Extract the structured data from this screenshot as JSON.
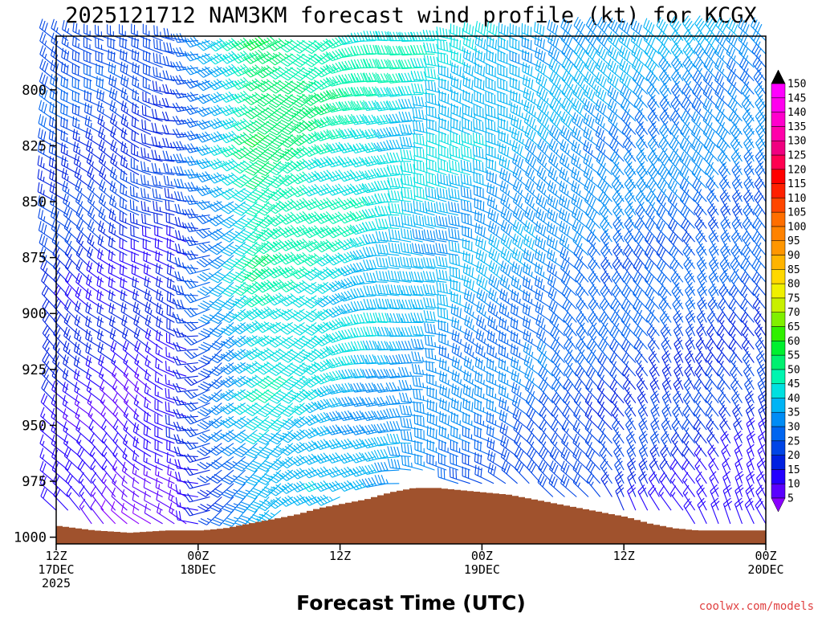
{
  "chart_data": {
    "type": "wind-profile",
    "title": "2025121712 NAM3KM forecast wind profile (kt) for KCGX",
    "xlabel": "Forecast Time (UTC)",
    "ylabel": "",
    "units": "kt",
    "y_axis": {
      "quantity": "pressure (hPa)",
      "inverted": true,
      "range": [
        1003,
        776
      ],
      "ticks": [
        800,
        825,
        850,
        875,
        900,
        925,
        950,
        975,
        1000
      ]
    },
    "x_axis": {
      "range_hours": [
        0,
        60
      ],
      "ticks": [
        {
          "hour": 0,
          "lines": [
            "12Z",
            "17DEC",
            "2025"
          ]
        },
        {
          "hour": 12,
          "lines": [
            "00Z",
            "18DEC"
          ]
        },
        {
          "hour": 24,
          "lines": [
            "12Z"
          ]
        },
        {
          "hour": 36,
          "lines": [
            "00Z",
            "19DEC"
          ]
        },
        {
          "hour": 48,
          "lines": [
            "12Z"
          ]
        },
        {
          "hour": 60,
          "lines": [
            "00Z",
            "20DEC"
          ]
        }
      ]
    },
    "grid": false,
    "colorbar": {
      "placement": "right",
      "levels": [
        5,
        10,
        15,
        20,
        25,
        30,
        35,
        40,
        45,
        50,
        55,
        60,
        65,
        70,
        75,
        80,
        85,
        90,
        95,
        100,
        105,
        110,
        115,
        120,
        125,
        130,
        135,
        140,
        145,
        150
      ],
      "colors": [
        "#8a00ff",
        "#5a00ff",
        "#2400ff",
        "#0020e0",
        "#0045e6",
        "#0065f0",
        "#008cf5",
        "#00b4f5",
        "#00e0e0",
        "#00f5b0",
        "#00f070",
        "#00f030",
        "#30f000",
        "#80f000",
        "#c8f000",
        "#f0f000",
        "#ffd800",
        "#ffb400",
        "#ff9600",
        "#ff8200",
        "#ff6e00",
        "#ff4600",
        "#ff2000",
        "#ff0000",
        "#ff0050",
        "#f00080",
        "#ff00aa",
        "#ff00cc",
        "#ff00ee",
        "#ff00ff"
      ]
    },
    "terrain": {
      "color": "#a0522d",
      "hours": [
        0,
        3,
        6,
        9,
        12,
        14,
        16,
        18,
        20,
        22,
        24,
        26,
        28,
        30,
        32,
        34,
        36,
        38,
        40,
        42,
        44,
        46,
        48,
        50,
        52,
        54,
        56,
        58,
        60
      ],
      "pressure": [
        995,
        997,
        998,
        997,
        997,
        996,
        994,
        992,
        990,
        987,
        985,
        983,
        980,
        978,
        978,
        979,
        980,
        981,
        983,
        985,
        987,
        989,
        991,
        994,
        996,
        997,
        997,
        997,
        997
      ]
    },
    "wind_field": {
      "time_step_hours": 1,
      "levels_hpa": [
        778,
        784,
        790,
        796,
        802,
        808,
        814,
        820,
        826,
        832,
        838,
        844,
        850,
        856,
        862,
        868,
        874,
        880,
        886,
        892,
        898,
        904,
        910,
        916,
        922,
        928,
        934,
        940,
        946,
        952,
        958,
        964,
        970,
        976,
        982,
        988,
        994
      ],
      "description": "Wind barbs drawn for each forecast hour and pressure level above terrain; barbs point toward the direction the wind comes from.",
      "keyframes": [
        {
          "hour": 0,
          "dir_upper": 300,
          "dir_lower": 320,
          "spd_upper": 30,
          "spd_lower": 15
        },
        {
          "hour": 6,
          "dir_upper": 295,
          "dir_lower": 315,
          "spd_upper": 28,
          "spd_lower": 10
        },
        {
          "hour": 11,
          "dir_upper": 275,
          "dir_lower": 300,
          "spd_upper": 25,
          "spd_lower": 15
        },
        {
          "hour": 14,
          "dir_upper": 250,
          "dir_lower": 220,
          "spd_upper": 40,
          "spd_lower": 25
        },
        {
          "hour": 18,
          "dir_upper": 235,
          "dir_lower": 230,
          "spd_upper": 60,
          "spd_lower": 40
        },
        {
          "hour": 23,
          "dir_upper": 240,
          "dir_lower": 240,
          "spd_upper": 55,
          "spd_lower": 40
        },
        {
          "hour": 28,
          "dir_upper": 265,
          "dir_lower": 265,
          "spd_upper": 50,
          "spd_lower": 35
        },
        {
          "hour": 36,
          "dir_upper": 290,
          "dir_lower": 300,
          "spd_upper": 45,
          "spd_lower": 30
        },
        {
          "hour": 48,
          "dir_upper": 315,
          "dir_lower": 330,
          "spd_upper": 40,
          "spd_lower": 20
        },
        {
          "hour": 60,
          "dir_upper": 320,
          "dir_lower": 335,
          "spd_upper": 38,
          "spd_lower": 15
        }
      ]
    }
  },
  "credit": {
    "text": "coolwx.com/models",
    "color": "#e04040"
  },
  "colors": {
    "frame": "#000000",
    "background": "#ffffff"
  }
}
